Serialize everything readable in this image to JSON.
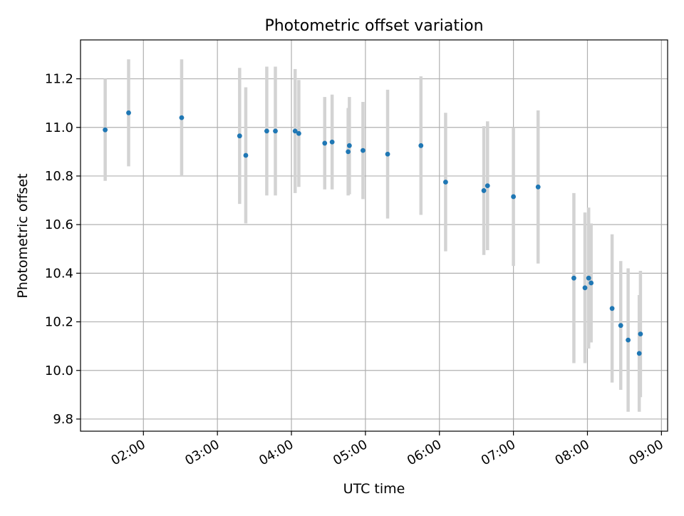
{
  "chart_data": {
    "type": "scatter",
    "title": "Photometric offset variation",
    "xlabel": "UTC time",
    "ylabel": "Photometric offset",
    "x_axis_kind": "time",
    "xlim": [
      "01:09",
      "09:05"
    ],
    "ylim": [
      9.75,
      11.36
    ],
    "x_ticks": [
      "02:00",
      "03:00",
      "04:00",
      "05:00",
      "06:00",
      "07:00",
      "08:00",
      "09:00"
    ],
    "y_ticks": [
      "9.8",
      "10.0",
      "10.2",
      "10.4",
      "10.6",
      "10.8",
      "11.0",
      "11.2"
    ],
    "grid": true,
    "legend": "none",
    "colors": {
      "point": "#1f77b4",
      "errorbar": "#d3d3d3",
      "grid": "#b0b0b0"
    },
    "series": [
      {
        "points": [
          {
            "x": "01:29",
            "y": 10.99,
            "err": 0.21
          },
          {
            "x": "01:48",
            "y": 11.06,
            "err": 0.22
          },
          {
            "x": "02:31",
            "y": 11.04,
            "err": 0.24
          },
          {
            "x": "03:18",
            "y": 10.965,
            "err": 0.28
          },
          {
            "x": "03:23",
            "y": 10.885,
            "err": 0.28
          },
          {
            "x": "03:40",
            "y": 10.985,
            "err": 0.265
          },
          {
            "x": "03:47",
            "y": 10.985,
            "err": 0.265
          },
          {
            "x": "04:03",
            "y": 10.985,
            "err": 0.255
          },
          {
            "x": "04:06",
            "y": 10.975,
            "err": 0.22
          },
          {
            "x": "04:27",
            "y": 10.935,
            "err": 0.19
          },
          {
            "x": "04:33",
            "y": 10.94,
            "err": 0.195
          },
          {
            "x": "04:46",
            "y": 10.9,
            "err": 0.18
          },
          {
            "x": "04:47",
            "y": 10.925,
            "err": 0.2
          },
          {
            "x": "04:58",
            "y": 10.905,
            "err": 0.2
          },
          {
            "x": "05:18",
            "y": 10.89,
            "err": 0.265
          },
          {
            "x": "05:45",
            "y": 10.925,
            "err": 0.285
          },
          {
            "x": "06:05",
            "y": 10.775,
            "err": 0.285
          },
          {
            "x": "06:36",
            "y": 10.74,
            "err": 0.265
          },
          {
            "x": "06:39",
            "y": 10.76,
            "err": 0.265
          },
          {
            "x": "07:00",
            "y": 10.715,
            "err": 0.285
          },
          {
            "x": "07:20",
            "y": 10.755,
            "err": 0.315
          },
          {
            "x": "07:49",
            "y": 10.38,
            "err": 0.35
          },
          {
            "x": "07:58",
            "y": 10.34,
            "err": 0.31
          },
          {
            "x": "08:01",
            "y": 10.38,
            "err": 0.29
          },
          {
            "x": "08:03",
            "y": 10.36,
            "err": 0.245
          },
          {
            "x": "08:20",
            "y": 10.255,
            "err": 0.305
          },
          {
            "x": "08:27",
            "y": 10.185,
            "err": 0.265
          },
          {
            "x": "08:33",
            "y": 10.125,
            "err": 0.295
          },
          {
            "x": "08:42",
            "y": 10.07,
            "err": 0.24
          },
          {
            "x": "08:43",
            "y": 10.15,
            "err": 0.26
          }
        ]
      }
    ]
  }
}
